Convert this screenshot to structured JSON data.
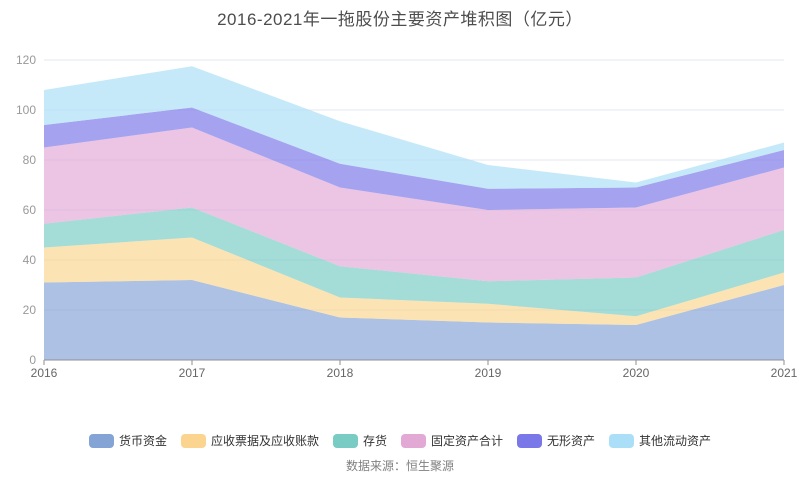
{
  "title": "2016-2021年一拖股份主要资产堆积图（亿元）",
  "source_note": "数据来源：恒生聚源",
  "colors": {
    "title_text": "#4d4d4d",
    "axis_line": "#8f8f8f",
    "y_tick_label": "#999999",
    "x_tick_label": "#666666",
    "gridline": "#e5e7f2",
    "legend_text": "#333333",
    "source_text": "#808080",
    "background": "#ffffff"
  },
  "chart_data": {
    "type": "area",
    "stacked": true,
    "title": "2016-2021年一拖股份主要资产堆积图（亿元）",
    "x": [
      "2016",
      "2017",
      "2018",
      "2019",
      "2020",
      "2021"
    ],
    "series": [
      {
        "name": "货币资金",
        "color": "#84a4d6",
        "values": [
          31,
          32,
          17,
          15,
          14,
          30
        ]
      },
      {
        "name": "应收票据及应收账款",
        "color": "#fbd58f",
        "values": [
          14,
          17,
          8,
          7.5,
          3.5,
          5
        ]
      },
      {
        "name": "存货",
        "color": "#79ccc4",
        "values": [
          9.5,
          12,
          12.5,
          9,
          15.5,
          17
        ]
      },
      {
        "name": "固定资产合计",
        "color": "#e2a9d5",
        "values": [
          30.5,
          32,
          31.5,
          28.5,
          28,
          25
        ]
      },
      {
        "name": "无形资产",
        "color": "#7a78e9",
        "values": [
          9,
          8,
          9.5,
          8.5,
          8,
          7
        ]
      },
      {
        "name": "其他流动资产",
        "color": "#abdff8",
        "values": [
          14,
          16.5,
          17,
          9.5,
          2,
          3
        ]
      }
    ],
    "stack_totals": [
      108,
      117.5,
      95.5,
      78,
      71,
      87
    ],
    "xlabel": "",
    "ylabel": "",
    "ylim": [
      0,
      120
    ],
    "yticks": [
      0,
      20,
      40,
      60,
      80,
      100,
      120
    ],
    "grid": true,
    "fill_opacity": 0.68,
    "legend_position": "bottom"
  }
}
